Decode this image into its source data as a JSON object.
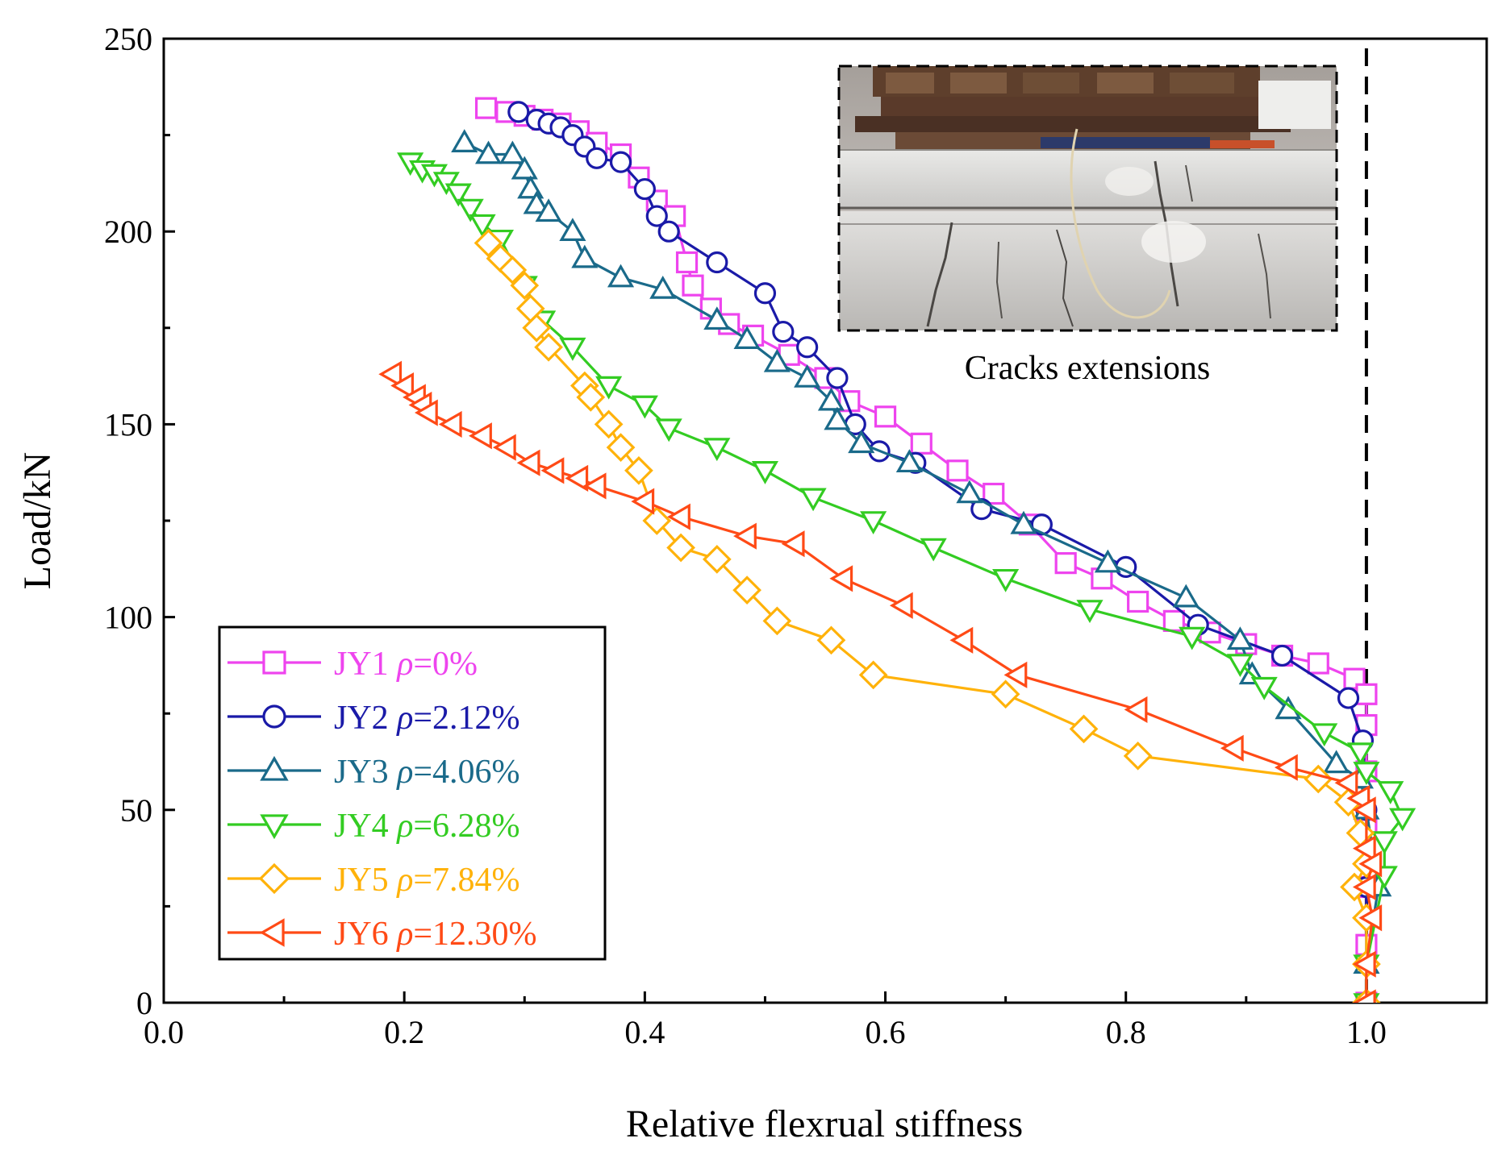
{
  "chart_data": {
    "type": "line",
    "title": "",
    "xlabel": "Relative flexrual stiffness",
    "ylabel": "Load/kN",
    "xlim": [
      0.0,
      1.1
    ],
    "ylim": [
      0,
      250
    ],
    "x_ticks": [
      "0.0",
      "0.2",
      "0.4",
      "0.6",
      "0.8",
      "1.0"
    ],
    "y_ticks": [
      "0",
      "50",
      "100",
      "150",
      "200",
      "250"
    ],
    "reference_line_x": 1.0,
    "inset_caption": "Cracks extensions",
    "legend_position": "bottom-left",
    "series": [
      {
        "name": "JY1",
        "rho_symbol": "ρ",
        "rho_text": "=0%",
        "color": "#ee44ee",
        "marker": "square",
        "x": [
          0.268,
          0.285,
          0.3,
          0.315,
          0.33,
          0.345,
          0.36,
          0.38,
          0.395,
          0.41,
          0.425,
          0.435,
          0.44,
          0.455,
          0.47,
          0.49,
          0.52,
          0.55,
          0.57,
          0.6,
          0.63,
          0.66,
          0.69,
          0.72,
          0.75,
          0.78,
          0.81,
          0.84,
          0.87,
          0.9,
          0.93,
          0.96,
          0.99,
          1.0,
          1.0,
          1.0,
          1.0,
          1.0,
          1.0,
          1.0
        ],
        "y": [
          232,
          231,
          230,
          229,
          228,
          226,
          223,
          220,
          214,
          208,
          204,
          192,
          186,
          180,
          176,
          173,
          168,
          162,
          156,
          152,
          145,
          138,
          132,
          124,
          114,
          110,
          104,
          99,
          96,
          93,
          90,
          88,
          84,
          80,
          72,
          60,
          45,
          30,
          15,
          0
        ]
      },
      {
        "name": "JY2",
        "rho_symbol": "ρ",
        "rho_text": "=2.12%",
        "color": "#1a1aa8",
        "marker": "circle",
        "x": [
          0.295,
          0.31,
          0.32,
          0.33,
          0.34,
          0.35,
          0.36,
          0.38,
          0.4,
          0.41,
          0.42,
          0.46,
          0.5,
          0.515,
          0.535,
          0.56,
          0.575,
          0.595,
          0.625,
          0.68,
          0.73,
          0.8,
          0.86,
          0.93,
          0.985,
          0.997,
          1.0,
          1.0,
          1.0
        ],
        "y": [
          231,
          229,
          228,
          227,
          225,
          222,
          219,
          218,
          211,
          204,
          200,
          192,
          184,
          174,
          170,
          162,
          150,
          143,
          140,
          128,
          124,
          113,
          98,
          90,
          79,
          68,
          50,
          30,
          0
        ]
      },
      {
        "name": "JY3",
        "rho_symbol": "ρ",
        "rho_text": "=4.06%",
        "color": "#1a6a8a",
        "marker": "triangle-up",
        "x": [
          0.25,
          0.27,
          0.29,
          0.3,
          0.305,
          0.31,
          0.32,
          0.34,
          0.35,
          0.38,
          0.415,
          0.46,
          0.485,
          0.51,
          0.535,
          0.555,
          0.56,
          0.58,
          0.62,
          0.67,
          0.715,
          0.785,
          0.85,
          0.895,
          0.905,
          0.935,
          0.975,
          0.995,
          1.0,
          1.01,
          1.0,
          1.0
        ],
        "y": [
          223,
          220,
          220,
          216,
          211,
          207,
          205,
          200,
          193,
          188,
          185,
          177,
          172,
          166,
          162,
          156,
          151,
          145,
          140,
          132,
          124,
          114,
          105,
          94,
          85,
          76,
          62,
          58,
          50,
          30,
          10,
          0
        ]
      },
      {
        "name": "JY4",
        "rho_symbol": "ρ",
        "rho_text": "=6.28%",
        "color": "#33cc22",
        "marker": "triangle-down",
        "x": [
          0.205,
          0.215,
          0.225,
          0.235,
          0.245,
          0.255,
          0.265,
          0.28,
          0.3,
          0.315,
          0.34,
          0.37,
          0.4,
          0.42,
          0.46,
          0.5,
          0.54,
          0.59,
          0.64,
          0.7,
          0.77,
          0.855,
          0.895,
          0.915,
          0.965,
          0.995,
          1.0,
          1.02,
          1.03,
          1.015,
          1.015,
          1.0,
          1.0
        ],
        "y": [
          218,
          216,
          215,
          213,
          210,
          206,
          202,
          198,
          186,
          177,
          170,
          160,
          155,
          149,
          144,
          138,
          131,
          125,
          118,
          110,
          102,
          95,
          88,
          82,
          70,
          65,
          60,
          55,
          48,
          42,
          33,
          10,
          0
        ]
      },
      {
        "name": "JY5",
        "rho_symbol": "ρ",
        "rho_text": "=7.84%",
        "color": "#ffb20a",
        "marker": "diamond",
        "x": [
          0.27,
          0.28,
          0.29,
          0.3,
          0.305,
          0.31,
          0.32,
          0.35,
          0.355,
          0.37,
          0.38,
          0.395,
          0.41,
          0.43,
          0.46,
          0.485,
          0.51,
          0.555,
          0.59,
          0.7,
          0.765,
          0.81,
          0.96,
          0.985,
          0.995,
          1.0,
          0.99,
          1.0,
          1.0,
          1.0
        ],
        "y": [
          197,
          193,
          190,
          186,
          180,
          175,
          170,
          160,
          157,
          150,
          144,
          138,
          125,
          118,
          115,
          107,
          99,
          94,
          85,
          80,
          71,
          64,
          58,
          52,
          44,
          36,
          30,
          22,
          10,
          0
        ]
      },
      {
        "name": "JY6",
        "rho_symbol": "ρ",
        "rho_text": "=12.30%",
        "color": "#ff4a16",
        "marker": "triangle-left",
        "x": [
          0.19,
          0.2,
          0.21,
          0.215,
          0.22,
          0.24,
          0.265,
          0.285,
          0.305,
          0.325,
          0.345,
          0.36,
          0.4,
          0.43,
          0.485,
          0.525,
          0.565,
          0.615,
          0.665,
          0.71,
          0.81,
          0.89,
          0.935,
          0.985,
          0.995,
          1.0,
          1.0,
          1.005,
          1.0,
          1.005,
          1.0,
          1.0
        ],
        "y": [
          163,
          160,
          157,
          155,
          153,
          150,
          147,
          144,
          140,
          138,
          136,
          134,
          130,
          126,
          121,
          119,
          110,
          103,
          94,
          85,
          76,
          66,
          61,
          57,
          53,
          50,
          40,
          36,
          30,
          22,
          10,
          0
        ]
      }
    ]
  }
}
